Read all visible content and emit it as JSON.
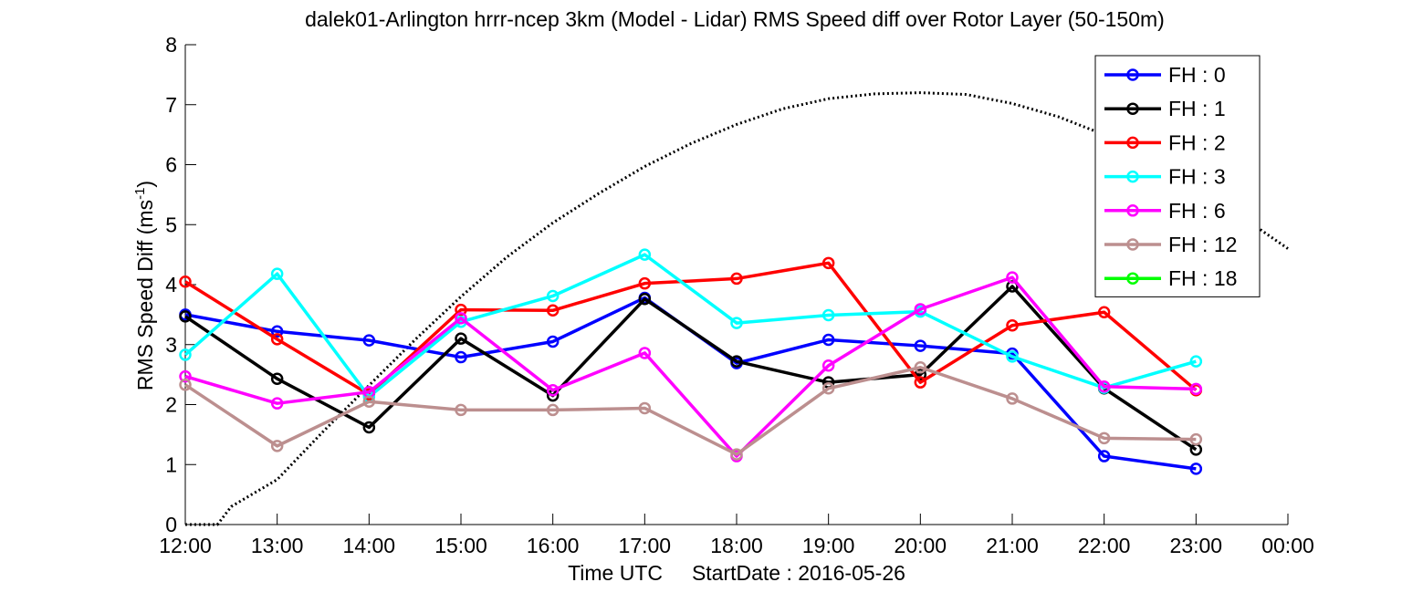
{
  "chart_data": {
    "type": "line",
    "title": "dalek01-Arlington hrrr-ncep 3km (Model - Lidar) RMS Speed diff over Rotor Layer (50-150m)",
    "xlabel": "Time UTC     StartDate : 2016-05-26",
    "ylabel": "RMS Speed Diff (ms",
    "ylabel_sup": "-1",
    "ylabel_close": ")",
    "x_ticks": [
      "12:00",
      "13:00",
      "14:00",
      "15:00",
      "16:00",
      "17:00",
      "18:00",
      "19:00",
      "20:00",
      "21:00",
      "22:00",
      "23:00",
      "00:00"
    ],
    "y_ticks": [
      "0",
      "1",
      "2",
      "3",
      "4",
      "5",
      "6",
      "7",
      "8"
    ],
    "ylim": [
      0,
      8
    ],
    "grid": false,
    "legend_position": "top-right",
    "series": [
      {
        "name": "FH : 0",
        "color": "#0000ff",
        "values": [
          3.5,
          3.22,
          3.07,
          2.79,
          3.05,
          3.78,
          2.69,
          3.08,
          2.98,
          2.85,
          1.14,
          0.93
        ]
      },
      {
        "name": "FH : 1",
        "color": "#000000",
        "values": [
          3.47,
          2.43,
          1.62,
          3.1,
          2.15,
          3.76,
          2.72,
          2.37,
          2.5,
          3.97,
          2.27,
          1.25
        ]
      },
      {
        "name": "FH : 2",
        "color": "#ff0000",
        "values": [
          4.05,
          3.09,
          2.17,
          3.58,
          3.57,
          4.02,
          4.1,
          4.36,
          2.37,
          3.32,
          3.54,
          2.24
        ]
      },
      {
        "name": "FH : 3",
        "color": "#00ffff",
        "values": [
          2.83,
          4.18,
          2.13,
          3.38,
          3.81,
          4.5,
          3.36,
          3.49,
          3.55,
          2.8,
          2.28,
          2.72
        ]
      },
      {
        "name": "FH : 6",
        "color": "#ff00ff",
        "values": [
          2.47,
          2.02,
          2.21,
          3.44,
          2.24,
          2.86,
          1.14,
          2.65,
          3.59,
          4.12,
          2.3,
          2.26
        ]
      },
      {
        "name": "FH : 12",
        "color": "#bc8f8f",
        "values": [
          2.33,
          1.31,
          2.05,
          1.91,
          1.91,
          1.94,
          1.17,
          2.27,
          2.62,
          2.1,
          1.44,
          1.42
        ]
      },
      {
        "name": "FH : 18",
        "color": "#00ff00",
        "values": []
      }
    ],
    "dotted_curve": {
      "color": "#000000",
      "x": [
        0.0,
        0.35,
        0.5,
        1.0,
        1.5,
        2.0,
        2.5,
        3.0,
        3.5,
        4.0,
        4.5,
        5.0,
        5.5,
        6.0,
        6.5,
        7.0,
        7.5,
        8.0,
        8.5,
        9.0,
        9.5,
        10.0,
        10.5,
        11.0,
        11.5,
        12.0
      ],
      "values": [
        0.0,
        0.0,
        0.3,
        0.75,
        1.55,
        2.32,
        3.08,
        3.8,
        4.46,
        5.03,
        5.52,
        5.97,
        6.35,
        6.67,
        6.93,
        7.1,
        7.18,
        7.2,
        7.17,
        7.02,
        6.8,
        6.5,
        6.12,
        5.65,
        5.13,
        4.6
      ]
    }
  }
}
